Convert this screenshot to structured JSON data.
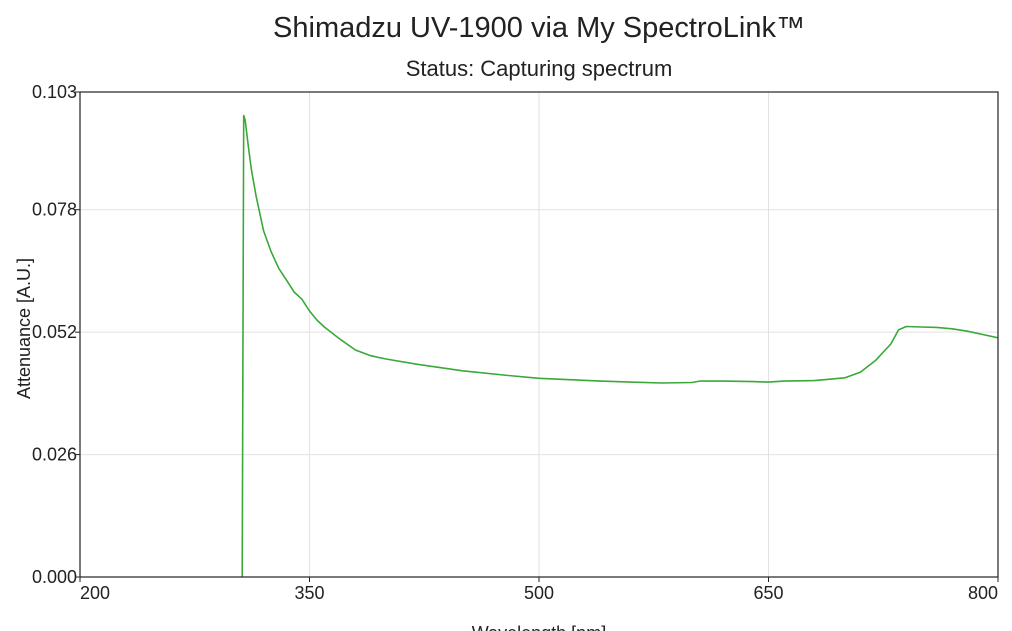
{
  "chart_data": {
    "type": "line",
    "title": "Shimadzu UV-1900 via My SpectroLink™",
    "subtitle": "Status: Capturing spectrum",
    "xlabel": "Wavelength [nm]",
    "ylabel": "Attenuance [A.U.]",
    "xlim": [
      200,
      800
    ],
    "ylim": [
      0.0,
      0.103
    ],
    "xticks": [
      200,
      350,
      500,
      650,
      800
    ],
    "xtick_labels": [
      "200",
      "350",
      "500",
      "650",
      "800"
    ],
    "yticks": [
      0.0,
      0.026,
      0.052,
      0.078,
      0.103
    ],
    "ytick_labels": [
      "0.000",
      "0.026",
      "0.052",
      "0.078",
      "0.103"
    ],
    "grid": true,
    "series": [
      {
        "color": "#3aa83a",
        "x": [
          306,
          307,
          308,
          310,
          312,
          315,
          320,
          325,
          330,
          335,
          340,
          345,
          350,
          355,
          360,
          370,
          380,
          390,
          400,
          420,
          450,
          480,
          500,
          520,
          540,
          560,
          580,
          600,
          605,
          620,
          640,
          650,
          660,
          680,
          700,
          710,
          720,
          730,
          735,
          740,
          750,
          760,
          770,
          780,
          790,
          800
        ],
        "y": [
          0.0,
          0.098,
          0.097,
          0.0915,
          0.0865,
          0.081,
          0.0735,
          0.069,
          0.0655,
          0.063,
          0.0605,
          0.059,
          0.0565,
          0.0545,
          0.053,
          0.0505,
          0.0482,
          0.047,
          0.0463,
          0.0452,
          0.0438,
          0.0428,
          0.0422,
          0.0419,
          0.0416,
          0.0414,
          0.0412,
          0.0413,
          0.0416,
          0.0416,
          0.0415,
          0.0414,
          0.0416,
          0.0417,
          0.0423,
          0.0435,
          0.046,
          0.0495,
          0.0525,
          0.0532,
          0.0531,
          0.053,
          0.0527,
          0.0522,
          0.0515,
          0.0508
        ]
      }
    ]
  }
}
